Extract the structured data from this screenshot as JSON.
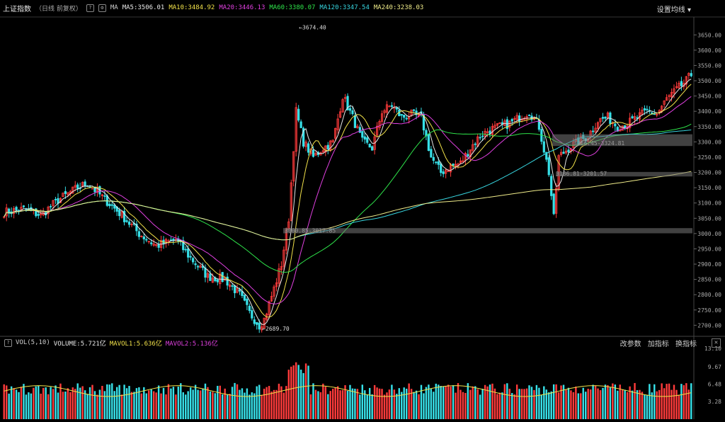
{
  "header": {
    "title": "上证指数",
    "subtitle": "（日线 前复权）",
    "help": "?",
    "ma_label": "MA",
    "ma_items": [
      {
        "label": "MA5:3506.01",
        "color": "#e8e8e8"
      },
      {
        "label": "MA10:3484.92",
        "color": "#f2e24a"
      },
      {
        "label": "MA20:3446.13",
        "color": "#e040e0"
      },
      {
        "label": "MA60:3380.07",
        "color": "#2ee34a"
      },
      {
        "label": "MA120:3347.54",
        "color": "#37d6e0"
      },
      {
        "label": "MA240:3238.03",
        "color": "#f0ec8a"
      }
    ],
    "settings_label": "设置均线"
  },
  "volume_header": {
    "label": "VOL(5,10)",
    "volume": "VOLUME:5.721亿",
    "mavol1": "MAVOL1:5.636亿",
    "mavol2": "MAVOL2:5.136亿",
    "tools": [
      "改参数",
      "加指标",
      "换指标"
    ],
    "close": "✕"
  },
  "colors": {
    "up": "#ff3b3b",
    "down": "#37e0e8",
    "ma5": "#e8e8e8",
    "ma10": "#f2e24a",
    "ma20": "#e040e0",
    "ma60": "#2ee34a",
    "ma120": "#37d6e0",
    "ma240": "#f0ec8a"
  },
  "chart_data": {
    "type": "candlestick",
    "y_axis_ticks": [
      "3650.00",
      "3600.00",
      "3550.00",
      "3500.00",
      "3450.00",
      "3400.00",
      "3350.00",
      "3300.00",
      "3250.00",
      "3200.00",
      "3150.00",
      "3100.00",
      "3050.00",
      "3000.00",
      "2950.00",
      "2900.00",
      "2850.00",
      "2800.00",
      "2750.00",
      "2700.00"
    ],
    "ylim": [
      2680,
      3690
    ],
    "annotations": [
      {
        "label": "3674.40",
        "value": 3674.4
      },
      {
        "label": "2689.70",
        "value": 2689.7
      },
      {
        "label": "3286.45-3324.81",
        "low": 3286.45,
        "high": 3324.81
      },
      {
        "label": "3186.81-3201.57",
        "low": 3186.81,
        "high": 3201.57
      },
      {
        "label": "3000.85-3017.85",
        "low": 3000.85,
        "high": 3017.85
      }
    ],
    "close_anchors": [
      [
        0,
        3070
      ],
      [
        8,
        3080
      ],
      [
        15,
        3060
      ],
      [
        22,
        3110
      ],
      [
        30,
        3150
      ],
      [
        34,
        3165
      ],
      [
        40,
        3120
      ],
      [
        48,
        3060
      ],
      [
        55,
        3000
      ],
      [
        62,
        2960
      ],
      [
        70,
        2980
      ],
      [
        76,
        2920
      ],
      [
        83,
        2860
      ],
      [
        90,
        2850
      ],
      [
        96,
        2800
      ],
      [
        100,
        2740
      ],
      [
        104,
        2700
      ],
      [
        106,
        2720
      ],
      [
        110,
        2820
      ],
      [
        113,
        2900
      ],
      [
        116,
        3050
      ],
      [
        119,
        3400
      ],
      [
        122,
        3300
      ],
      [
        126,
        3250
      ],
      [
        130,
        3280
      ],
      [
        134,
        3300
      ],
      [
        138,
        3450
      ],
      [
        142,
        3380
      ],
      [
        146,
        3300
      ],
      [
        150,
        3280
      ],
      [
        154,
        3400
      ],
      [
        158,
        3420
      ],
      [
        162,
        3380
      ],
      [
        166,
        3390
      ],
      [
        170,
        3380
      ],
      [
        174,
        3250
      ],
      [
        178,
        3200
      ],
      [
        182,
        3220
      ],
      [
        186,
        3230
      ],
      [
        190,
        3280
      ],
      [
        194,
        3320
      ],
      [
        198,
        3340
      ],
      [
        202,
        3350
      ],
      [
        206,
        3360
      ],
      [
        210,
        3380
      ],
      [
        214,
        3400
      ],
      [
        218,
        3350
      ],
      [
        222,
        3200
      ],
      [
        224,
        3050
      ],
      [
        226,
        3250
      ],
      [
        230,
        3280
      ],
      [
        234,
        3300
      ],
      [
        238,
        3320
      ],
      [
        242,
        3370
      ],
      [
        246,
        3380
      ],
      [
        250,
        3350
      ],
      [
        254,
        3360
      ],
      [
        258,
        3380
      ],
      [
        262,
        3400
      ],
      [
        266,
        3390
      ],
      [
        270,
        3440
      ],
      [
        274,
        3470
      ],
      [
        278,
        3500
      ],
      [
        280,
        3520
      ]
    ],
    "volume_axis_ticks": [
      "13.10",
      "9.67",
      "6.48",
      "3.28"
    ],
    "volume_ylim": [
      0,
      13.1
    ]
  }
}
